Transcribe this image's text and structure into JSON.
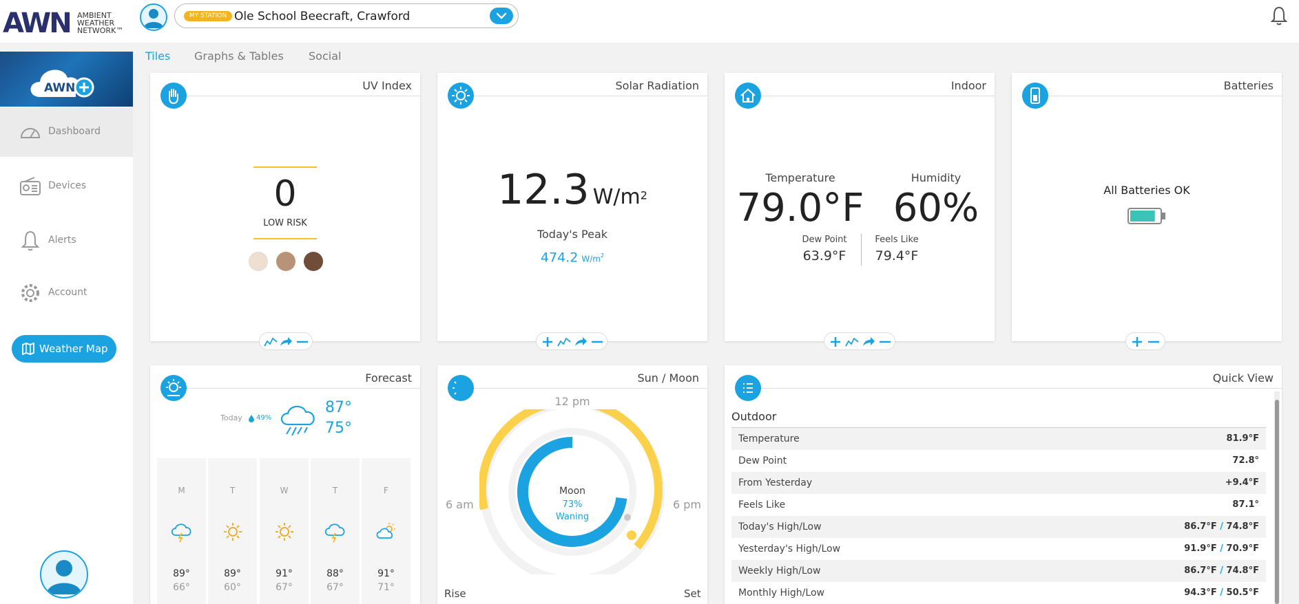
{
  "header": {
    "logo_text": "AWN",
    "logo_subtext": [
      "AMBIENT",
      "WEATHER",
      "NETWORK™"
    ],
    "station_badge": "MY STATION",
    "station_name": "Ole School Beecraft, Crawford",
    "tabs": [
      {
        "label": "Tiles",
        "active": true
      },
      {
        "label": "Graphs & Tables",
        "active": false
      },
      {
        "label": "Social",
        "active": false
      }
    ]
  },
  "sidebar": {
    "items": [
      {
        "label": "Dashboard",
        "icon": "gauge-icon",
        "active": true
      },
      {
        "label": "Devices",
        "icon": "radio-icon",
        "active": false
      },
      {
        "label": "Alerts",
        "icon": "bell-icon",
        "active": false
      },
      {
        "label": "Account",
        "icon": "gear-icon",
        "active": false
      }
    ],
    "weather_map_label": "Weather Map"
  },
  "uv": {
    "title": "UV Index",
    "value": "0",
    "risk": "LOW RISK",
    "skin_colors": [
      "#eedfd0",
      "#b99377",
      "#6f4d39"
    ]
  },
  "solar": {
    "title": "Solar Radiation",
    "value": "12.3",
    "unit": "W/m",
    "unit_sup": "2",
    "peak_label": "Today's Peak",
    "peak_value": "474.2",
    "peak_unit": "W/m",
    "peak_unit_sup": "2"
  },
  "indoor": {
    "title": "Indoor",
    "temp_label": "Temperature",
    "temp_value": "79.0°F",
    "humidity_label": "Humidity",
    "humidity_value": "60%",
    "dew_label": "Dew Point",
    "dew_value": "63.9°F",
    "feels_label": "Feels Like",
    "feels_value": "79.4°F"
  },
  "batteries": {
    "title": "Batteries",
    "status": "All Batteries OK",
    "level": 0.85
  },
  "forecast": {
    "title": "Forecast",
    "today_label": "Today",
    "today_precip": "49%",
    "today_high": "87°",
    "today_low": "75°",
    "days": [
      {
        "day": "M",
        "icon": "storm-icon",
        "high": "89°",
        "low": "66°"
      },
      {
        "day": "T",
        "icon": "sun-icon",
        "high": "89°",
        "low": "60°"
      },
      {
        "day": "W",
        "icon": "sun-icon",
        "high": "91°",
        "low": "67°"
      },
      {
        "day": "T",
        "icon": "storm-icon",
        "high": "88°",
        "low": "67°"
      },
      {
        "day": "F",
        "icon": "partly-cloudy-icon",
        "high": "91°",
        "low": "71°"
      }
    ]
  },
  "sunmoon": {
    "title": "Sun / Moon",
    "noon": "12 pm",
    "am": "6 am",
    "pm": "6 pm",
    "moon_label": "Moon",
    "moon_pct": "73%",
    "moon_phase": "Waning",
    "moon_fraction": 0.73,
    "rise_label": "Rise",
    "set_label": "Set"
  },
  "quickview": {
    "title": "Quick View",
    "section": "Outdoor",
    "rows": [
      {
        "label": "Temperature",
        "value": "81.9°F"
      },
      {
        "label": "Dew Point",
        "value": "72.8°"
      },
      {
        "label": "From Yesterday",
        "value": "+9.4°F"
      },
      {
        "label": "Feels Like",
        "value": "87.1°"
      },
      {
        "label": "Today's High/Low",
        "high": "86.7°F",
        "low": "74.8°F"
      },
      {
        "label": "Yesterday's High/Low",
        "high": "91.9°F",
        "low": "70.9°F"
      },
      {
        "label": "Weekly High/Low",
        "high": "86.7°F",
        "low": "74.8°F"
      },
      {
        "label": "Monthly High/Low",
        "high": "94.3°F",
        "low": "50.5°F"
      }
    ]
  },
  "colors": {
    "accent": "#1aa3e0",
    "sun": "#fbd14b",
    "badge": "#f2b51d",
    "battery": "#3cc2b6"
  }
}
